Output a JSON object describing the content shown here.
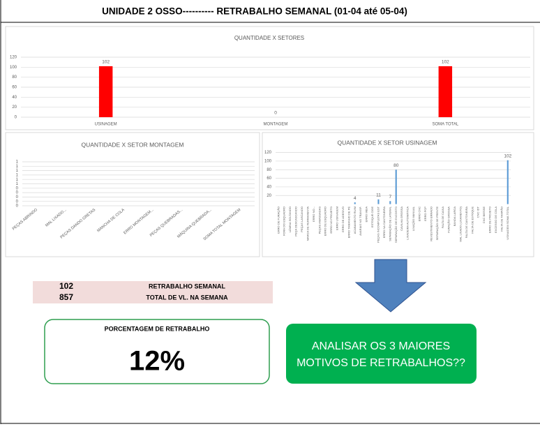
{
  "title": "UNIDADE 2 OSSO----------   RETRABALHO SEMANAL (01-04 até 05-04)",
  "chart_data": [
    {
      "type": "bar",
      "title": "QUANTIDADE X SETORES",
      "categories": [
        "USINAGEM",
        "MONTAGEM",
        "SOMA TOTAL"
      ],
      "values": [
        102,
        0,
        102
      ],
      "color": "#ff0000",
      "ylim": [
        0,
        120
      ],
      "yticks": [
        0,
        20,
        40,
        60,
        80,
        100,
        120
      ],
      "grid": true,
      "data_labels": true
    },
    {
      "type": "bar",
      "title": "QUANTIDADE X SETOR MONTAGEM",
      "categories": [
        "PEÇAS ABRINDO",
        "MAL LIXADO...",
        "PEÇAS DANDO GRETAS",
        "MANCHA DE COLA",
        "ERRO MONTAGEM...",
        "PEÇAS QUEBRADAS...",
        "MÁQUINA QUEBRADA...",
        "SOMA TOTAL MONTAGEM"
      ],
      "values": [
        0,
        0,
        0,
        0,
        0,
        0,
        0,
        0
      ],
      "color": "#5b9bd5",
      "ylim": [
        0,
        1
      ],
      "yticks": [
        {
          "value": 0,
          "label": "0"
        },
        {
          "value": 0.1,
          "label": "0"
        },
        {
          "value": 0.2,
          "label": "0"
        },
        {
          "value": 0.3,
          "label": "0"
        },
        {
          "value": 0.4,
          "label": "0"
        },
        {
          "value": 0.5,
          "label": "1"
        },
        {
          "value": 0.6,
          "label": "1"
        },
        {
          "value": 0.7,
          "label": "1"
        },
        {
          "value": 0.8,
          "label": "1"
        },
        {
          "value": 0.9,
          "label": "1"
        },
        {
          "value": 1,
          "label": "1"
        }
      ],
      "grid": true,
      "data_labels": false
    },
    {
      "type": "bar",
      "title": "QUANTIDADE X SETOR USINAGEM",
      "categories": [
        "ERRO DE FURAÇÃO",
        "FORA DO ESQUADRO",
        "LÂMINA SOLTANDO",
        "PEÇA DESCASCANDO",
        "PEÇAS LASCANDO",
        "MARCA DE FERRAMENTA",
        "ERRO NO...",
        "PEÇAS AMASSADAS",
        "ERRO DE ESQUADRO",
        "ERRO NO PROJETO",
        "ERRO USINAGEM",
        "ERRO DE ADESIVO",
        "ERRO TAMANHO DE PÉ",
        "ACABAMENTO RUIM",
        "AVARIAS NO TRANSP.",
        "ERRO MEIA",
        "ESTOQUE CIDE",
        "PEÇAS INCOMPLETAS EST",
        "ERRO NA CANTONEIRA",
        "SEPARAÇÃO DE LATERAL",
        "SEPARAÇÃO DE ENCOSTO",
        "CAVILHA GROSSA",
        "LIXADEIRA AUTOMÁTICA",
        "LIXAÇÃO MANUAL",
        "ERRO CNC",
        "ERRO PCP",
        "REVESTIMENTO ERRADO",
        "SEPARAÇÃO DE FRENTE",
        "FALTA DE CAIXA",
        "FURAÇÃO GROSSA",
        "BANDA LARGA",
        "MAL LIXADO (LIXAMENTO)",
        "FALTA DE CANTONEIRA",
        "FALTA DE ESTOQUE",
        "CNC IDT",
        "CNC BIESSE",
        "ERRO DE PROJETO",
        "EXCESSO DE COLA",
        "FALTA DE TAMPÃO",
        "USINAGEM SOMA TOTAL"
      ],
      "values": [
        null,
        null,
        null,
        null,
        null,
        null,
        null,
        null,
        null,
        null,
        null,
        null,
        null,
        4,
        null,
        null,
        null,
        11,
        null,
        7,
        80,
        null,
        null,
        null,
        null,
        null,
        null,
        null,
        null,
        null,
        null,
        null,
        null,
        null,
        null,
        null,
        null,
        null,
        null,
        102
      ],
      "color": "#5b9bd5",
      "ylim": [
        0,
        120
      ],
      "yticks": [
        20,
        40,
        60,
        80,
        100,
        120
      ],
      "grid": true,
      "data_labels": true
    }
  ],
  "summary": {
    "rows": [
      [
        102,
        "RETRABALHO SEMANAL"
      ],
      [
        857,
        "TOTAL DE VL. NA SEMANA"
      ]
    ]
  },
  "kpi": {
    "label": "PORCENTAGEM DE RETRABALHO",
    "value": "12%"
  },
  "callout": {
    "lines": [
      "ANALISAR OS 3 MAIORES",
      "MOTIVOS DE RETRABALHOS??"
    ]
  }
}
